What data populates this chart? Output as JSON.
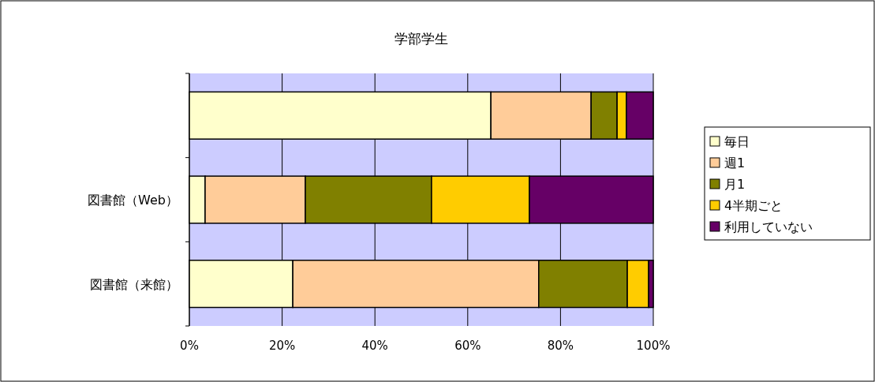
{
  "chart_data": {
    "type": "bar",
    "orientation": "horizontal",
    "stacked": true,
    "title": "学部学生",
    "categories": [
      null,
      "図書館（Web）",
      "図書館（来館）"
    ],
    "series": [
      {
        "name": "毎日",
        "color": "#ffffcc",
        "values": [
          65.0,
          3.4,
          22.3
        ]
      },
      {
        "name": "週1",
        "color": "#ffcc99",
        "values": [
          21.6,
          21.6,
          53.0
        ]
      },
      {
        "name": "月1",
        "color": "#808000",
        "values": [
          5.6,
          27.2,
          19.1
        ]
      },
      {
        "name": "4半期ごと",
        "color": "#ffcc00",
        "values": [
          2.0,
          21.1,
          4.6
        ]
      },
      {
        "name": "利用していない",
        "color": "#660066",
        "values": [
          5.8,
          26.7,
          1.0
        ]
      }
    ],
    "xlim": [
      0,
      100
    ],
    "xticks": [
      {
        "value": 0,
        "label": "0%"
      },
      {
        "value": 20,
        "label": "20%"
      },
      {
        "value": 40,
        "label": "40%"
      },
      {
        "value": 60,
        "label": "60%"
      },
      {
        "value": 80,
        "label": "80%"
      },
      {
        "value": 100,
        "label": "100%"
      }
    ],
    "grid": "x",
    "legend": "right"
  }
}
